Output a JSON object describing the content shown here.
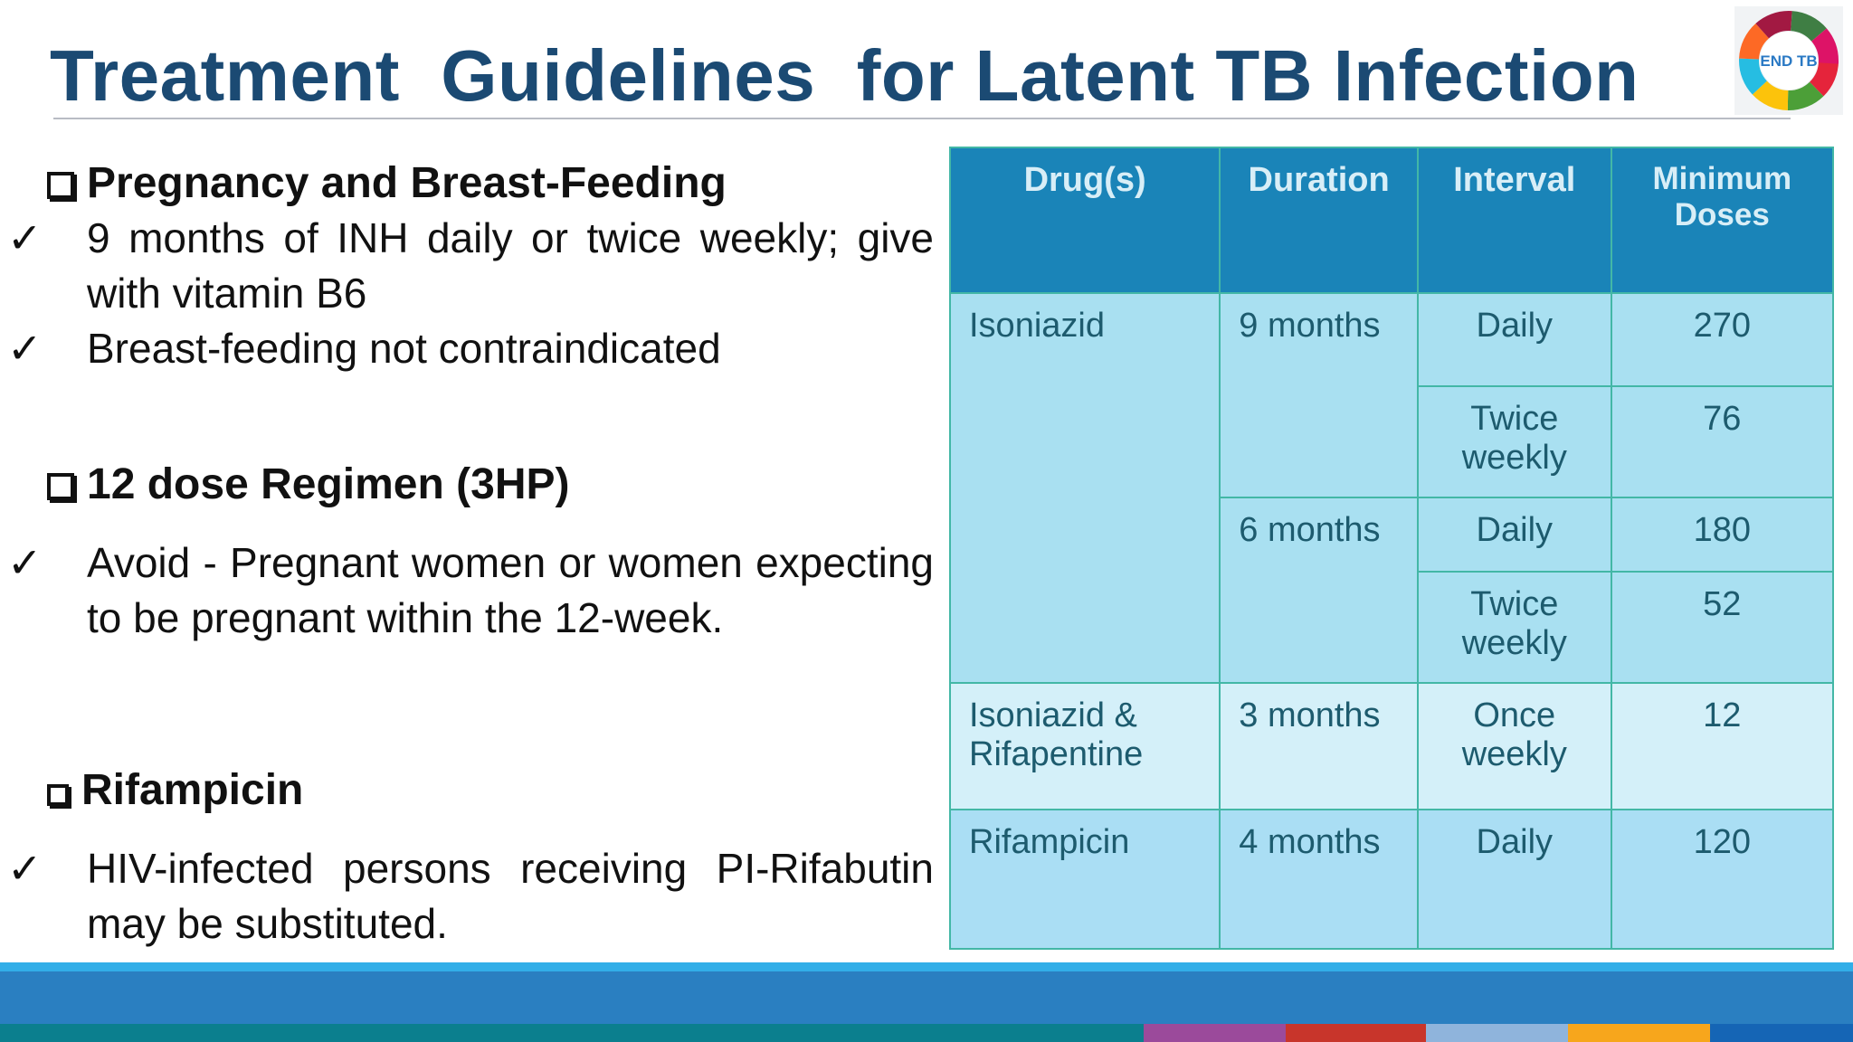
{
  "header": {
    "title": "Treatment  Guidelines  for Latent TB Infection",
    "logo_text": "END TB"
  },
  "sections": [
    {
      "heading": "Pregnancy and Breast-Feeding",
      "bullets": [
        "9 months of INH daily or twice weekly; give with vitamin B6",
        "Breast-feeding not contraindicated"
      ]
    },
    {
      "heading": "12 dose Regimen (3HP)",
      "bullets": [
        "Avoid - Pregnant women  or women expecting to be pregnant within the 12-week."
      ]
    },
    {
      "heading": "Rifampicin",
      "bullets": [
        "HIV-infected persons receiving PI-Rifabutin may be substituted."
      ]
    }
  ],
  "table": {
    "header": [
      "Drug(s)",
      "Duration",
      "Interval",
      "Minimum Doses"
    ],
    "rows": [
      [
        "Isoniazid",
        "9 months",
        "Daily",
        270
      ],
      [
        "Twice weekly",
        76
      ],
      [
        "6 months",
        "Daily",
        180
      ],
      [
        "Twice weekly",
        52
      ],
      [
        "Isoniazid & Rifapentine",
        "3 months",
        "Once weekly",
        12
      ],
      [
        "Rifampicin",
        "4 months",
        "Daily",
        120
      ]
    ]
  }
}
